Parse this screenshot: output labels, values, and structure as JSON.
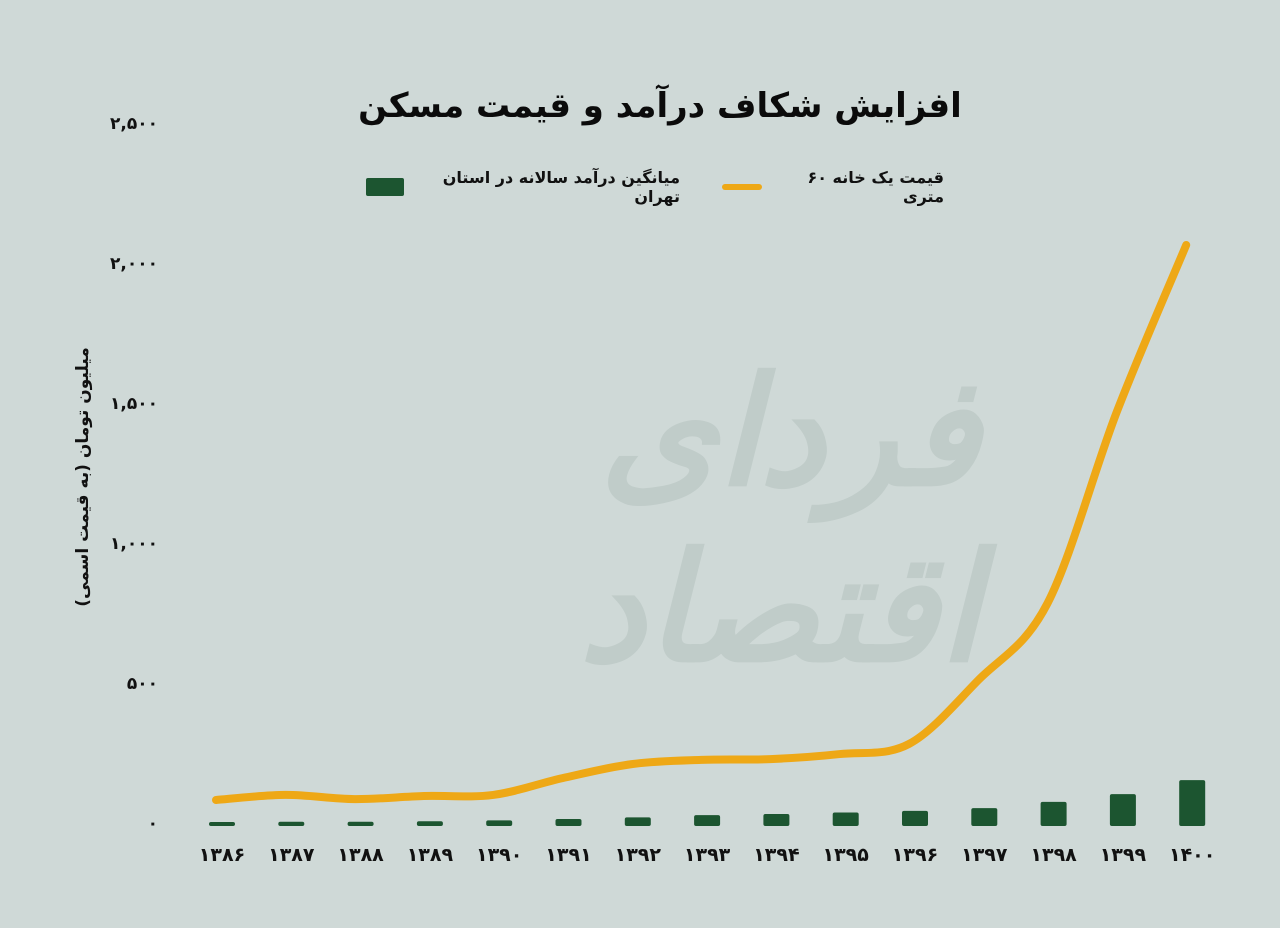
{
  "title": "افزایش شکاف درآمد و قیمت مسکن",
  "watermark": "فردای اقتصاد",
  "legend": {
    "line_label": "قیمت یک خانه ۶۰ متری",
    "bar_label": "میانگین درآمد سالانه در استان تهران"
  },
  "colors": {
    "background": "#cfd9d7",
    "line": "#eea816",
    "bar": "#1c5530",
    "watermark": "#bfcbc8"
  },
  "y_axis": {
    "label": "میلیون تومان (به قیمت اسمی)",
    "ticks": [
      "۰",
      "۵۰۰",
      "۱,۰۰۰",
      "۱,۵۰۰",
      "۲,۰۰۰",
      "۲,۵۰۰"
    ]
  },
  "x_axis": {
    "ticks": [
      "۱۳۸۶",
      "۱۳۸۷",
      "۱۳۸۸",
      "۱۳۸۹",
      "۱۳۹۰",
      "۱۳۹۱",
      "۱۳۹۲",
      "۱۳۹۳",
      "۱۳۹۴",
      "۱۳۹۵",
      "۱۳۹۶",
      "۱۳۹۷",
      "۱۳۹۸",
      "۱۳۹۹",
      "۱۴۰۰"
    ]
  },
  "chart_data": {
    "type": "bar+line",
    "title": "افزایش شکاف درآمد و قیمت مسکن",
    "xlabel": "",
    "ylabel": "میلیون تومان (به قیمت اسمی)",
    "ylim": [
      0,
      2500
    ],
    "yticks": [
      0,
      500,
      1000,
      1500,
      2000,
      2500
    ],
    "grid": false,
    "legend_position": "top",
    "categories": [
      "1386",
      "1387",
      "1388",
      "1389",
      "1390",
      "1391",
      "1392",
      "1393",
      "1394",
      "1395",
      "1396",
      "1397",
      "1398",
      "1399",
      "1400"
    ],
    "series": [
      {
        "name": "قیمت یک خانه ۶۰ متری",
        "type": "line",
        "color": "#eea816",
        "values": [
          93,
          111,
          96,
          107,
          111,
          171,
          221,
          236,
          239,
          257,
          293,
          521,
          796,
          1480,
          2075
        ]
      },
      {
        "name": "میانگین درآمد سالانه در استان تهران",
        "type": "bar",
        "color": "#1c5530",
        "values": [
          14,
          15,
          15,
          17,
          20,
          25,
          31,
          39,
          43,
          48,
          54,
          64,
          86,
          114,
          164
        ]
      }
    ]
  }
}
